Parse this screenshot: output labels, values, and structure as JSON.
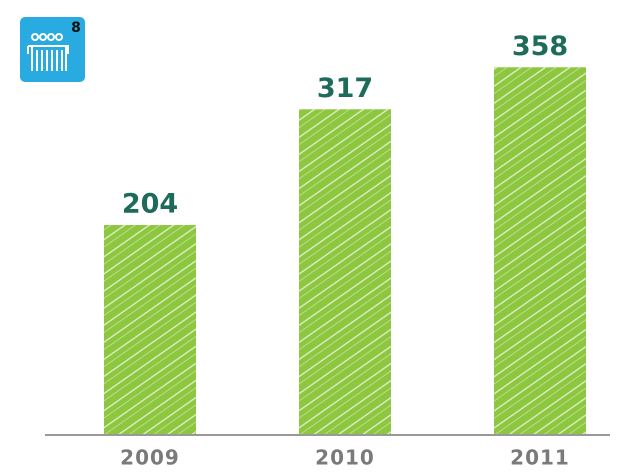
{
  "icon": {
    "label": "8"
  },
  "chart_data": {
    "type": "bar",
    "categories": [
      "2009",
      "2010",
      "2011"
    ],
    "values": [
      204,
      317,
      358
    ],
    "color": "#8dc63f",
    "ylim": [
      0,
      370
    ]
  }
}
